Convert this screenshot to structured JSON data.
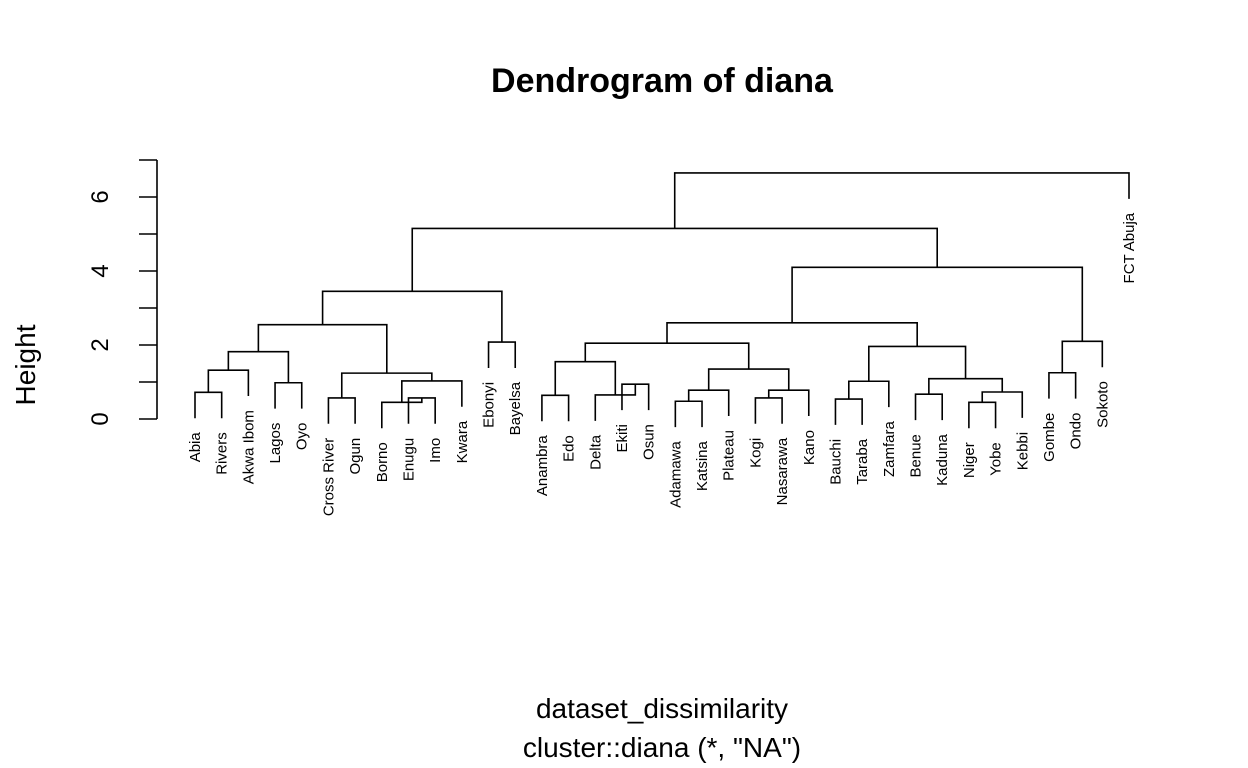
{
  "chart_data": {
    "type": "dendrogram",
    "title": "Dendrogram of diana",
    "ylabel": "Height",
    "xlabel": "dataset_dissimilarity",
    "subtitle": "cluster::diana (*, \"NA\")",
    "ylim": [
      0,
      7
    ],
    "y_ticks": [
      0,
      2,
      4,
      6
    ],
    "leaves": [
      "Abia",
      "Rivers",
      "Akwa Ibom",
      "Lagos",
      "Oyo",
      "Cross River",
      "Ogun",
      "Borno",
      "Enugu",
      "Imo",
      "Kwara",
      "Ebonyi",
      "Bayelsa",
      "Anambra",
      "Edo",
      "Delta",
      "Ekiti",
      "Osun",
      "Adamawa",
      "Katsina",
      "Plateau",
      "Kogi",
      "Nasarawa",
      "Kano",
      "Bauchi",
      "Taraba",
      "Zamfara",
      "Benue",
      "Kaduna",
      "Niger",
      "Yobe",
      "Kebbi",
      "Gombe",
      "Ondo",
      "Sokoto",
      "FCT Abuja"
    ],
    "merges": [
      {
        "a": "Abia",
        "b": "Rivers",
        "height": 0.72
      },
      {
        "a": 0,
        "b": "Akwa Ibom",
        "height": 1.32
      },
      {
        "a": "Lagos",
        "b": "Oyo",
        "height": 0.98
      },
      {
        "a": 1,
        "b": 2,
        "height": 1.82
      },
      {
        "a": "Cross River",
        "b": "Ogun",
        "height": 0.57
      },
      {
        "a": "Enugu",
        "b": "Imo",
        "height": 0.57
      },
      {
        "a": "Borno",
        "b": 5,
        "height": 0.45
      },
      {
        "a": 6,
        "b": "Kwara",
        "height": 1.03
      },
      {
        "a": 4,
        "b": 7,
        "height": 1.24
      },
      {
        "a": 3,
        "b": 8,
        "height": 2.55
      },
      {
        "a": "Ebonyi",
        "b": "Bayelsa",
        "height": 2.08
      },
      {
        "a": 9,
        "b": 10,
        "height": 3.45
      },
      {
        "a": "Anambra",
        "b": "Edo",
        "height": 0.64
      },
      {
        "a": "Ekiti",
        "b": "Osun",
        "height": 0.94
      },
      {
        "a": "Delta",
        "b": 13,
        "height": 0.65
      },
      {
        "a": 12,
        "b": 14,
        "height": 1.55
      },
      {
        "a": "Adamawa",
        "b": "Katsina",
        "height": 0.48
      },
      {
        "a": 16,
        "b": "Plateau",
        "height": 0.78
      },
      {
        "a": "Kogi",
        "b": "Nasarawa",
        "height": 0.57
      },
      {
        "a": 18,
        "b": "Kano",
        "height": 0.78
      },
      {
        "a": 17,
        "b": 19,
        "height": 1.35
      },
      {
        "a": 15,
        "b": 20,
        "height": 2.05
      },
      {
        "a": "Bauchi",
        "b": "Taraba",
        "height": 0.54
      },
      {
        "a": 22,
        "b": "Zamfara",
        "height": 1.02
      },
      {
        "a": "Benue",
        "b": "Kaduna",
        "height": 0.67
      },
      {
        "a": "Niger",
        "b": "Yobe",
        "height": 0.45
      },
      {
        "a": 25,
        "b": "Kebbi",
        "height": 0.73
      },
      {
        "a": 24,
        "b": 26,
        "height": 1.09
      },
      {
        "a": 23,
        "b": 27,
        "height": 1.96
      },
      {
        "a": 21,
        "b": 28,
        "height": 2.6
      },
      {
        "a": "Gombe",
        "b": "Ondo",
        "height": 1.25
      },
      {
        "a": 30,
        "b": "Sokoto",
        "height": 2.1
      },
      {
        "a": 29,
        "b": 31,
        "height": 4.1
      },
      {
        "a": 11,
        "b": 32,
        "height": 5.15
      },
      {
        "a": 33,
        "b": "FCT Abuja",
        "height": 6.65
      }
    ]
  }
}
